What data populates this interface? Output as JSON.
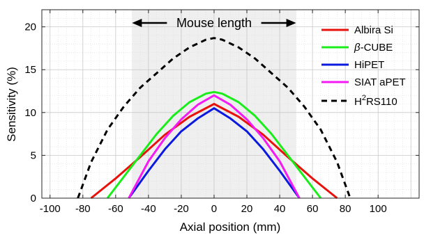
{
  "chart_data": {
    "type": "line",
    "xlabel": "Axial position (mm)",
    "ylabel": "Sensitivity (%)",
    "xlim": [
      -105,
      125
    ],
    "ylim": [
      0,
      22
    ],
    "xticks": [
      -100,
      -80,
      -60,
      -40,
      -20,
      0,
      20,
      40,
      60,
      80,
      100
    ],
    "yticks": [
      0,
      5,
      10,
      15,
      20
    ],
    "grid": true,
    "minor_grid": true,
    "legend_position": "top-right",
    "shaded_region": {
      "x": [
        -50,
        50
      ],
      "label": "Mouse length",
      "color": "#efefef"
    },
    "series": [
      {
        "name": "Albira Si",
        "color": "#e8120c",
        "dash": "solid",
        "x": [
          -75,
          -60,
          -45,
          -30,
          -15,
          0,
          15,
          30,
          45,
          60,
          75
        ],
        "y": [
          0,
          2.3,
          4.8,
          7.4,
          9.5,
          11.0,
          9.5,
          7.4,
          4.8,
          2.3,
          0
        ]
      },
      {
        "name": "β-CUBE",
        "name_symbol": "β",
        "name_rest": "-CUBE",
        "color": "#1aee1a",
        "dash": "solid",
        "x": [
          -65,
          -55,
          -45,
          -35,
          -25,
          -15,
          -5,
          0,
          5,
          15,
          25,
          35,
          45,
          55,
          65
        ],
        "y": [
          0,
          2.5,
          5.0,
          7.5,
          9.6,
          11.2,
          12.2,
          12.4,
          12.2,
          11.2,
          9.6,
          7.5,
          5.0,
          2.5,
          0
        ]
      },
      {
        "name": "HiPET",
        "color": "#0a18e0",
        "dash": "solid",
        "x": [
          -52,
          -40,
          -30,
          -20,
          -10,
          0,
          10,
          20,
          30,
          40,
          52
        ],
        "y": [
          0,
          3.2,
          5.7,
          7.8,
          9.3,
          10.5,
          9.3,
          7.8,
          5.7,
          3.2,
          0
        ]
      },
      {
        "name": "SIAT aPET",
        "color": "#f41af4",
        "dash": "solid",
        "x": [
          -52,
          -40,
          -30,
          -20,
          -10,
          0,
          10,
          20,
          30,
          40,
          52
        ],
        "y": [
          0,
          4.3,
          7.0,
          9.2,
          10.9,
          12.0,
          10.9,
          9.2,
          7.0,
          4.3,
          0
        ]
      },
      {
        "name": "H2RS110",
        "name_main": "H",
        "name_sup": "2",
        "name_rest": "RS110",
        "color": "#000000",
        "dash": "dashed",
        "x": [
          -83,
          -75,
          -65,
          -55,
          -45,
          -35,
          -25,
          -15,
          -5,
          0,
          5,
          15,
          25,
          35,
          45,
          55,
          65,
          75,
          83
        ],
        "y": [
          0,
          4.2,
          8.0,
          10.7,
          12.9,
          14.6,
          16.3,
          17.6,
          18.5,
          18.7,
          18.5,
          17.6,
          16.3,
          14.6,
          12.9,
          10.7,
          8.0,
          4.2,
          0
        ]
      }
    ]
  }
}
